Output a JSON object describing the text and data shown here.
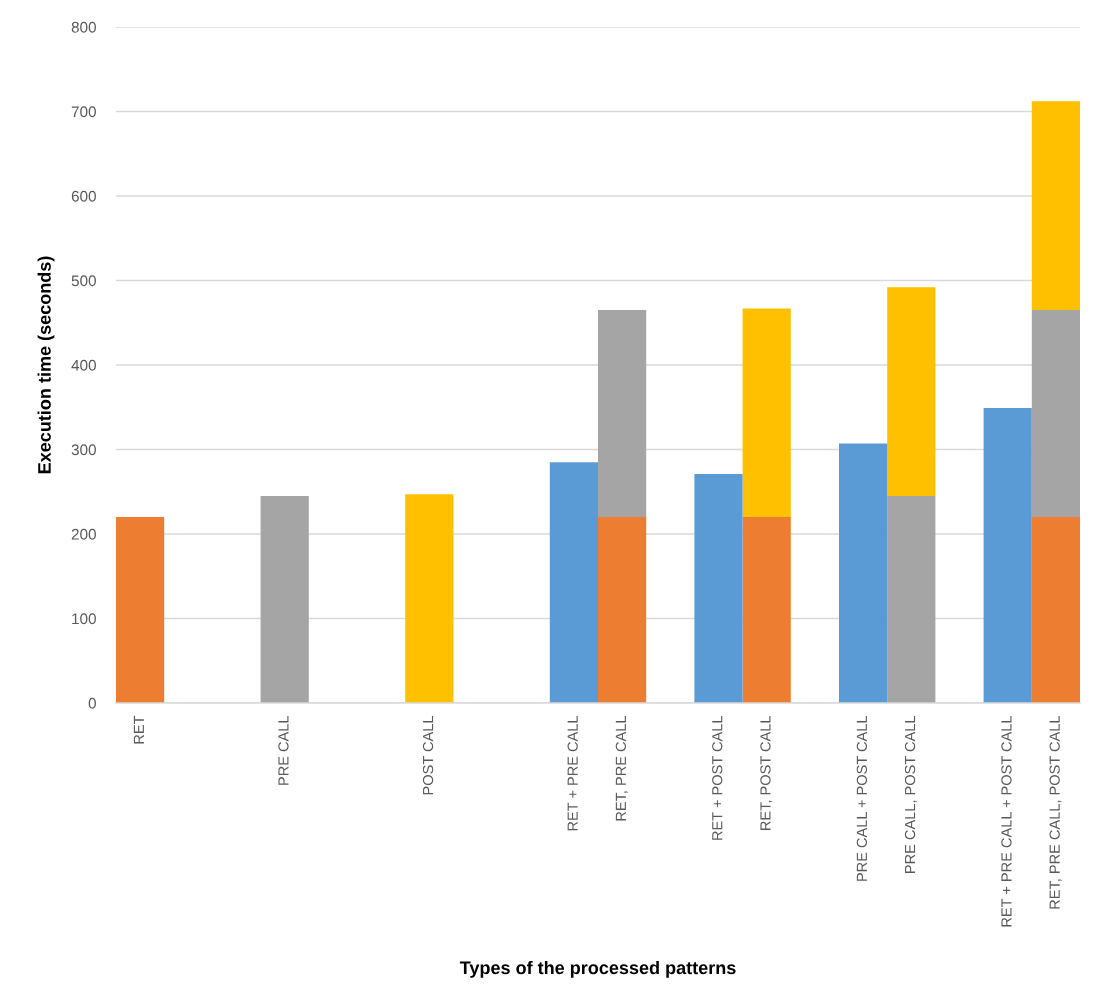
{
  "chart_data": {
    "type": "bar",
    "stacked": true,
    "xlabel": "Types of the processed patterns",
    "ylabel": "Execution time (seconds)",
    "categories": [
      "RET",
      null,
      null,
      "PRE CALL",
      null,
      null,
      "POST CALL",
      null,
      null,
      "RET + PRE CALL",
      "RET, PRE CALL",
      null,
      "RET + POST CALL",
      "RET, POST CALL",
      null,
      "PRE CALL + POST CALL",
      "PRE CALL, POST CALL",
      null,
      "RET + PRE CALL + POST CALL",
      "RET, PRE CALL, POST CALL"
    ],
    "series": [
      {
        "color": "#ed7d31",
        "values": [
          220,
          null,
          null,
          null,
          null,
          null,
          null,
          null,
          null,
          null,
          220,
          null,
          null,
          220,
          null,
          null,
          null,
          null,
          null,
          220
        ]
      },
      {
        "color": "#a5a5a5",
        "values": [
          null,
          null,
          null,
          245,
          null,
          null,
          null,
          null,
          null,
          null,
          245,
          null,
          null,
          null,
          null,
          null,
          245,
          null,
          null,
          245
        ]
      },
      {
        "color": "#ffc000",
        "values": [
          null,
          null,
          null,
          null,
          null,
          null,
          247,
          null,
          null,
          null,
          null,
          null,
          null,
          247,
          null,
          null,
          247,
          null,
          null,
          247
        ]
      },
      {
        "color": "#5b9bd5",
        "values": [
          null,
          null,
          null,
          null,
          null,
          null,
          null,
          null,
          null,
          285,
          null,
          null,
          271,
          null,
          null,
          307,
          null,
          null,
          349,
          null
        ]
      }
    ],
    "ylim": [
      0,
      800
    ],
    "yticks": [
      0,
      100,
      200,
      300,
      400,
      500,
      600,
      700,
      800
    ],
    "grid": "y"
  }
}
